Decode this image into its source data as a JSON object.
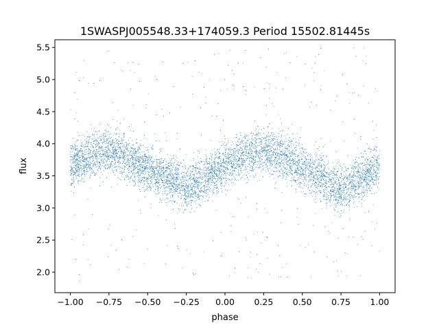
{
  "chart_data": {
    "type": "scatter",
    "title": "1SWASPJ005548.33+174059.3 Period 15502.81445s",
    "xlabel": "phase",
    "ylabel": "flux",
    "xlim": [
      -1.1,
      1.1
    ],
    "ylim": [
      1.68,
      5.62
    ],
    "xticks": [
      -1.0,
      -0.75,
      -0.5,
      -0.25,
      0.0,
      0.25,
      0.5,
      0.75,
      1.0
    ],
    "xtick_labels": [
      "−1.00",
      "−0.75",
      "−0.50",
      "−0.25",
      "0.00",
      "0.25",
      "0.50",
      "0.75",
      "1.00"
    ],
    "yticks": [
      2.0,
      2.5,
      3.0,
      3.5,
      4.0,
      4.5,
      5.0,
      5.5
    ],
    "ytick_labels": [
      "2.0",
      "2.5",
      "3.0",
      "3.5",
      "4.0",
      "4.5",
      "5.0",
      "5.5"
    ],
    "grid": false,
    "color": "#1f77b4",
    "series": [
      {
        "phase": [
          -1.0,
          -0.9,
          -0.8,
          -0.75,
          -0.7,
          -0.6,
          -0.5,
          -0.4,
          -0.3,
          -0.25,
          -0.2,
          -0.1,
          0.0,
          0.1,
          0.2,
          0.25,
          0.3,
          0.4,
          0.5,
          0.6,
          0.7,
          0.75,
          0.8,
          0.9,
          1.0
        ],
        "center_flux": [
          3.66,
          3.78,
          3.87,
          3.88,
          3.86,
          3.74,
          3.62,
          3.5,
          3.38,
          3.32,
          3.36,
          3.5,
          3.66,
          3.8,
          3.88,
          3.89,
          3.88,
          3.78,
          3.64,
          3.5,
          3.36,
          3.3,
          3.36,
          3.5,
          3.66
        ],
        "band_halfwidth": 0.32,
        "flux_range": [
          1.86,
          5.5
        ]
      }
    ]
  }
}
